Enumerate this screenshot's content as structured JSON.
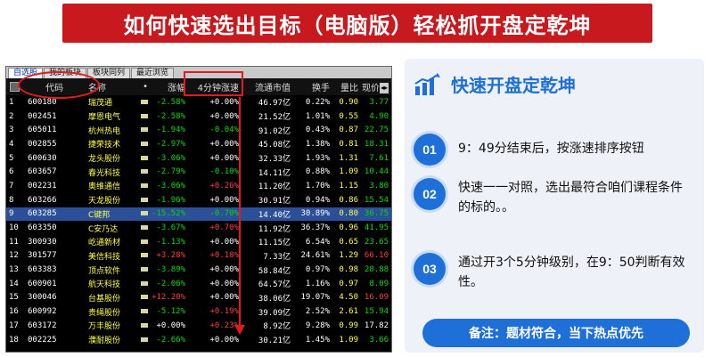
{
  "banner": {
    "title": "如何快速选出目标（电脑版）轻松抓开盘定乾坤"
  },
  "window": {
    "tabs": [
      "自选股",
      "我的板块",
      "板块同列",
      "最近浏览"
    ],
    "columns": [
      "代码",
      "名称",
      "•",
      "涨幅",
      "4分钟涨速",
      "流通市值",
      "换手",
      "量比",
      "现价"
    ],
    "rows": [
      {
        "no": "1",
        "code": "600180",
        "name": "瑞茂通",
        "chg": "-2.58%",
        "speed": "+0.00%",
        "mcap": "46.97亿",
        "turn": "0.22%",
        "vr": "0.90",
        "price": "3.77"
      },
      {
        "no": "2",
        "code": "002451",
        "name": "摩恩电气",
        "chg": "-2.58%",
        "speed": "+0.00%",
        "mcap": "21.52亿",
        "turn": "1.01%",
        "vr": "0.55",
        "price": "4.90"
      },
      {
        "no": "3",
        "code": "605011",
        "name": "杭州热电",
        "chg": "-1.94%",
        "speed": "-0.04%",
        "mcap": "91.02亿",
        "turn": "0.43%",
        "vr": "0.87",
        "price": "22.75"
      },
      {
        "no": "4",
        "code": "002855",
        "name": "捷荣技术",
        "chg": "-2.97%",
        "speed": "+0.00%",
        "mcap": "45.08亿",
        "turn": "1.38%",
        "vr": "0.81",
        "price": "18.31"
      },
      {
        "no": "5",
        "code": "600630",
        "name": "龙头股份",
        "chg": "-3.06%",
        "speed": "+0.00%",
        "mcap": "32.33亿",
        "turn": "1.93%",
        "vr": "1.31",
        "price": "7.61"
      },
      {
        "no": "6",
        "code": "603657",
        "name": "春光科技",
        "chg": "-2.79%",
        "speed": "-0.10%",
        "mcap": "14.11亿",
        "turn": "0.88%",
        "vr": "1.09",
        "price": "10.44"
      },
      {
        "no": "7",
        "code": "002231",
        "name": "奥维通信",
        "chg": "-3.06%",
        "speed": "+0.26%",
        "mcap": "11.20亿",
        "turn": "1.70%",
        "vr": "1.15",
        "price": "3.80"
      },
      {
        "no": "8",
        "code": "603266",
        "name": "天龙股份",
        "chg": "-1.96%",
        "speed": "+0.00%",
        "mcap": "30.91亿",
        "turn": "0.94%",
        "vr": "0.86",
        "price": "15.54"
      },
      {
        "no": "9",
        "code": "603285",
        "name": "C键邦",
        "chg": "-15.52%",
        "speed": "-0.70%",
        "mcap": "14.40亿",
        "turn": "30.89%",
        "vr": "0.80",
        "price": "36.75",
        "selected": true
      },
      {
        "no": "10",
        "code": "603350",
        "name": "C安乃达",
        "chg": "-3.67%",
        "speed": "+0.70%",
        "mcap": "11.92亿",
        "turn": "36.37%",
        "vr": "0.96",
        "price": "41.95"
      },
      {
        "no": "11",
        "code": "300930",
        "name": "屹通新材",
        "chg": "-1.13%",
        "speed": "+0.00%",
        "mcap": "11.15亿",
        "turn": "6.54%",
        "vr": "0.65",
        "price": "23.65"
      },
      {
        "no": "12",
        "code": "301577",
        "name": "美信科技",
        "chg": "+3.28%",
        "speed": "+0.18%",
        "mcap": "7.33亿",
        "turn": "24.61%",
        "vr": "1.29",
        "price": "66.10"
      },
      {
        "no": "13",
        "code": "603383",
        "name": "顶点软件",
        "chg": "-3.89%",
        "speed": "+0.00%",
        "mcap": "58.84亿",
        "turn": "0.97%",
        "vr": "0.98",
        "price": "28.88"
      },
      {
        "no": "14",
        "code": "600901",
        "name": "航天科技",
        "chg": "-2.06%",
        "speed": "+0.00%",
        "mcap": "64.57亿",
        "turn": "1.16%",
        "vr": "0.97",
        "price": "8.09"
      },
      {
        "no": "15",
        "code": "300046",
        "name": "台基股份",
        "chg": "+12.20%",
        "speed": "+0.00%",
        "mcap": "38.06亿",
        "turn": "19.07%",
        "vr": "4.50",
        "price": "16.09"
      },
      {
        "no": "16",
        "code": "600992",
        "name": "贵绳股份",
        "chg": "-5.12%",
        "speed": "+0.19%",
        "mcap": "39.09亿",
        "turn": "2.52%",
        "vr": "2.61",
        "price": "15.94"
      },
      {
        "no": "17",
        "code": "603172",
        "name": "万丰股份",
        "chg": "+0.00%",
        "speed": "+0.23%",
        "mcap": "8.92亿",
        "turn": "9.28%",
        "vr": "0.99",
        "price": "17.82"
      },
      {
        "no": "18",
        "code": "002225",
        "name": "濮耐股份",
        "chg": "-2.66%",
        "speed": "+0.00%",
        "mcap": "30.21亿",
        "turn": "1.45%",
        "vr": "1.09",
        "price": "3.66"
      }
    ]
  },
  "panel": {
    "title": "快速开盘定乾坤",
    "steps": [
      {
        "badge": "01",
        "text": "9：49分结束后，按涨速排序按钮"
      },
      {
        "badge": "02",
        "text": "快速一一对照，选出最符合咱们课程条件的标的。。"
      },
      {
        "badge": "03",
        "text": "通过开3个5分钟级别，在9：50判断有效性。"
      }
    ],
    "note": "备注：题材符合，当下热点优先"
  },
  "colors": {
    "banner": "#c8191f",
    "accent": "#1e6fd8",
    "annotation": "#e3191f",
    "rise": "#ff3c3c",
    "fall": "#00dd00"
  }
}
